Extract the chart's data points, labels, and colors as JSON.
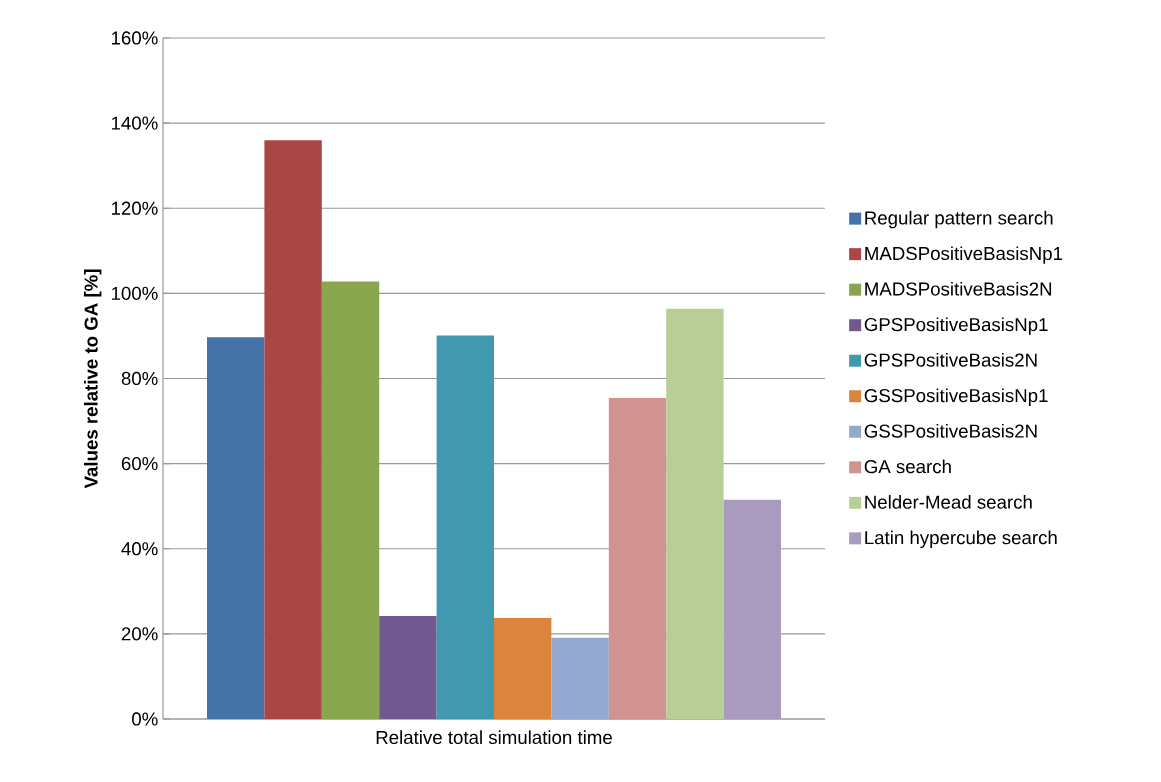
{
  "chart_data": {
    "type": "bar",
    "ylabel": "Values relative to GA [%]",
    "categories": [
      "Relative total simulation time"
    ],
    "series": [
      {
        "name": "Regular pattern search",
        "color": "#4572a7",
        "values": [
          89.7
        ]
      },
      {
        "name": "MADSPositiveBasisNp1",
        "color": "#aa4643",
        "values": [
          136.0
        ]
      },
      {
        "name": "MADSPositiveBasis2N",
        "color": "#89a54e",
        "values": [
          102.8
        ]
      },
      {
        "name": "GPSPositiveBasisNp1",
        "color": "#71588f",
        "values": [
          24.2
        ]
      },
      {
        "name": "GPSPositiveBasis2N",
        "color": "#4198af",
        "values": [
          90.1
        ]
      },
      {
        "name": "GSSPositiveBasisNp1",
        "color": "#db843d",
        "values": [
          23.7
        ]
      },
      {
        "name": "GSSPositiveBasis2N",
        "color": "#93a9cf",
        "values": [
          19.1
        ]
      },
      {
        "name": "GA search",
        "color": "#d19392",
        "values": [
          75.4
        ]
      },
      {
        "name": "Nelder-Mead search",
        "color": "#b9cd96",
        "values": [
          96.4
        ]
      },
      {
        "name": "Latin hypercube search",
        "color": "#a99bbd",
        "values": [
          51.5
        ]
      }
    ],
    "ylim": [
      0,
      160
    ],
    "yticks": [
      {
        "value": 0,
        "label": "0%"
      },
      {
        "value": 20,
        "label": "20%"
      },
      {
        "value": 40,
        "label": "40%"
      },
      {
        "value": 60,
        "label": "60%"
      },
      {
        "value": 80,
        "label": "80%"
      },
      {
        "value": 100,
        "label": "100%"
      },
      {
        "value": 120,
        "label": "120%"
      },
      {
        "value": 140,
        "label": "140%"
      },
      {
        "value": 160,
        "label": "160%"
      }
    ],
    "grid": "y",
    "legend": "right"
  }
}
